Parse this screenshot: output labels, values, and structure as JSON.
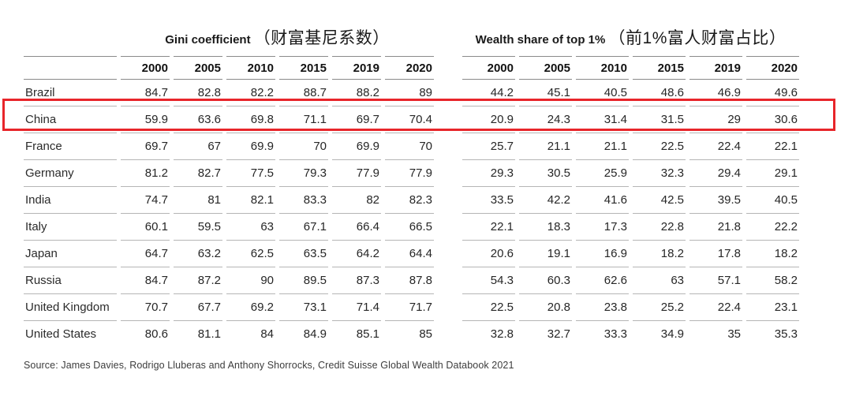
{
  "chart_data": {
    "type": "table",
    "group_headers": [
      {
        "en": "Gini coefficient",
        "zh": "（财富基尼系数）"
      },
      {
        "en": "Wealth share of top 1%",
        "zh": "（前1%富人财富占比）"
      }
    ],
    "years": [
      "2000",
      "2005",
      "2010",
      "2015",
      "2019",
      "2020"
    ],
    "rows": [
      {
        "country": "Brazil",
        "highlighted": false,
        "gini": [
          "84.7",
          "82.8",
          "82.2",
          "88.7",
          "88.2",
          "89"
        ],
        "wealth": [
          "44.2",
          "45.1",
          "40.5",
          "48.6",
          "46.9",
          "49.6"
        ]
      },
      {
        "country": "China",
        "highlighted": true,
        "gini": [
          "59.9",
          "63.6",
          "69.8",
          "71.1",
          "69.7",
          "70.4"
        ],
        "wealth": [
          "20.9",
          "24.3",
          "31.4",
          "31.5",
          "29",
          "30.6"
        ]
      },
      {
        "country": "France",
        "highlighted": false,
        "gini": [
          "69.7",
          "67",
          "69.9",
          "70",
          "69.9",
          "70"
        ],
        "wealth": [
          "25.7",
          "21.1",
          "21.1",
          "22.5",
          "22.4",
          "22.1"
        ]
      },
      {
        "country": "Germany",
        "highlighted": false,
        "gini": [
          "81.2",
          "82.7",
          "77.5",
          "79.3",
          "77.9",
          "77.9"
        ],
        "wealth": [
          "29.3",
          "30.5",
          "25.9",
          "32.3",
          "29.4",
          "29.1"
        ]
      },
      {
        "country": "India",
        "highlighted": false,
        "gini": [
          "74.7",
          "81",
          "82.1",
          "83.3",
          "82",
          "82.3"
        ],
        "wealth": [
          "33.5",
          "42.2",
          "41.6",
          "42.5",
          "39.5",
          "40.5"
        ]
      },
      {
        "country": "Italy",
        "highlighted": false,
        "gini": [
          "60.1",
          "59.5",
          "63",
          "67.1",
          "66.4",
          "66.5"
        ],
        "wealth": [
          "22.1",
          "18.3",
          "17.3",
          "22.8",
          "21.8",
          "22.2"
        ]
      },
      {
        "country": "Japan",
        "highlighted": false,
        "gini": [
          "64.7",
          "63.2",
          "62.5",
          "63.5",
          "64.2",
          "64.4"
        ],
        "wealth": [
          "20.6",
          "19.1",
          "16.9",
          "18.2",
          "17.8",
          "18.2"
        ]
      },
      {
        "country": "Russia",
        "highlighted": false,
        "gini": [
          "84.7",
          "87.2",
          "90",
          "89.5",
          "87.3",
          "87.8"
        ],
        "wealth": [
          "54.3",
          "60.3",
          "62.6",
          "63",
          "57.1",
          "58.2"
        ]
      },
      {
        "country": "United Kingdom",
        "highlighted": false,
        "gini": [
          "70.7",
          "67.7",
          "69.2",
          "73.1",
          "71.4",
          "71.7"
        ],
        "wealth": [
          "22.5",
          "20.8",
          "23.8",
          "25.2",
          "22.4",
          "23.1"
        ]
      },
      {
        "country": "United States",
        "highlighted": false,
        "gini": [
          "80.6",
          "81.1",
          "84",
          "84.9",
          "85.1",
          "85"
        ],
        "wealth": [
          "32.8",
          "32.7",
          "33.3",
          "34.9",
          "35",
          "35.3"
        ]
      }
    ],
    "layout": {
      "grid": "off",
      "highlight_style": "red-outline-on-china-row"
    }
  },
  "source_note": "Source: James Davies, Rodrigo Lluberas and Anthony Shorrocks, Credit Suisse Global Wealth Databook 2021",
  "colors": {
    "highlight_red": "#e8252a",
    "header_line": "#8a8a8a",
    "row_line": "#b5b5b5",
    "text": "#262626",
    "background": "#ffffff"
  }
}
